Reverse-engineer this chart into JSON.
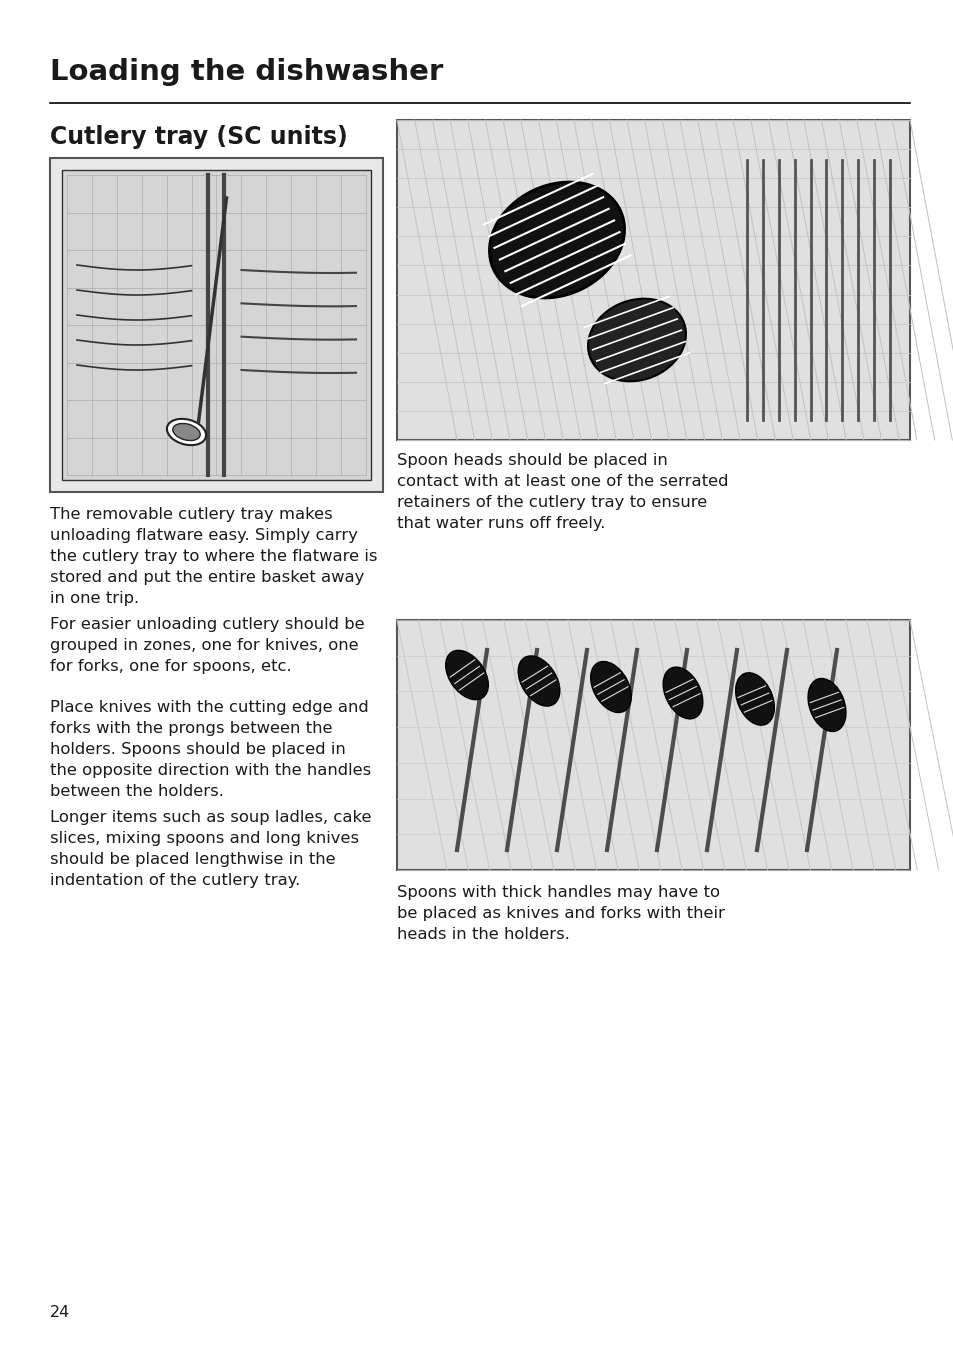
{
  "bg_color": "#ffffff",
  "page_number": "24",
  "title": "Loading the dishwasher",
  "subtitle": "Cutlery tray (SC units)",
  "title_fontsize": 21,
  "subtitle_fontsize": 17,
  "body_fontsize": 11.8,
  "page_num_fontsize": 11.5,
  "text_color": "#1a1a1a",
  "line_color": "#000000",
  "paragraphs_left": [
    "The removable cutlery tray makes\nunloading flatware easy. Simply carry\nthe cutlery tray to where the flatware is\nstored and put the entire basket away\nin one trip.",
    "For easier unloading cutlery should be\ngrouped in zones, one for knives, one\nfor forks, one for spoons, etc.",
    "Place knives with the cutting edge and\nforks with the prongs between the\nholders. Spoons should be placed in\nthe opposite direction with the handles\nbetween the holders.",
    "Longer items such as soup ladles, cake\nslices, mixing spoons and long knives\nshould be placed lengthwise in the\nindentation of the cutlery tray."
  ],
  "caption_right_top": "Spoon heads should be placed in\ncontact with at least one of the serrated\nretainers of the cutlery tray to ensure\nthat water runs off freely.",
  "caption_right_bottom": "Spoons with thick handles may have to\nbe placed as knives and forks with their\nheads in the holders.",
  "img_border_color": "#666666",
  "img_face_color": "#e5e5e5",
  "img_inner_color": "#d0d0d0"
}
